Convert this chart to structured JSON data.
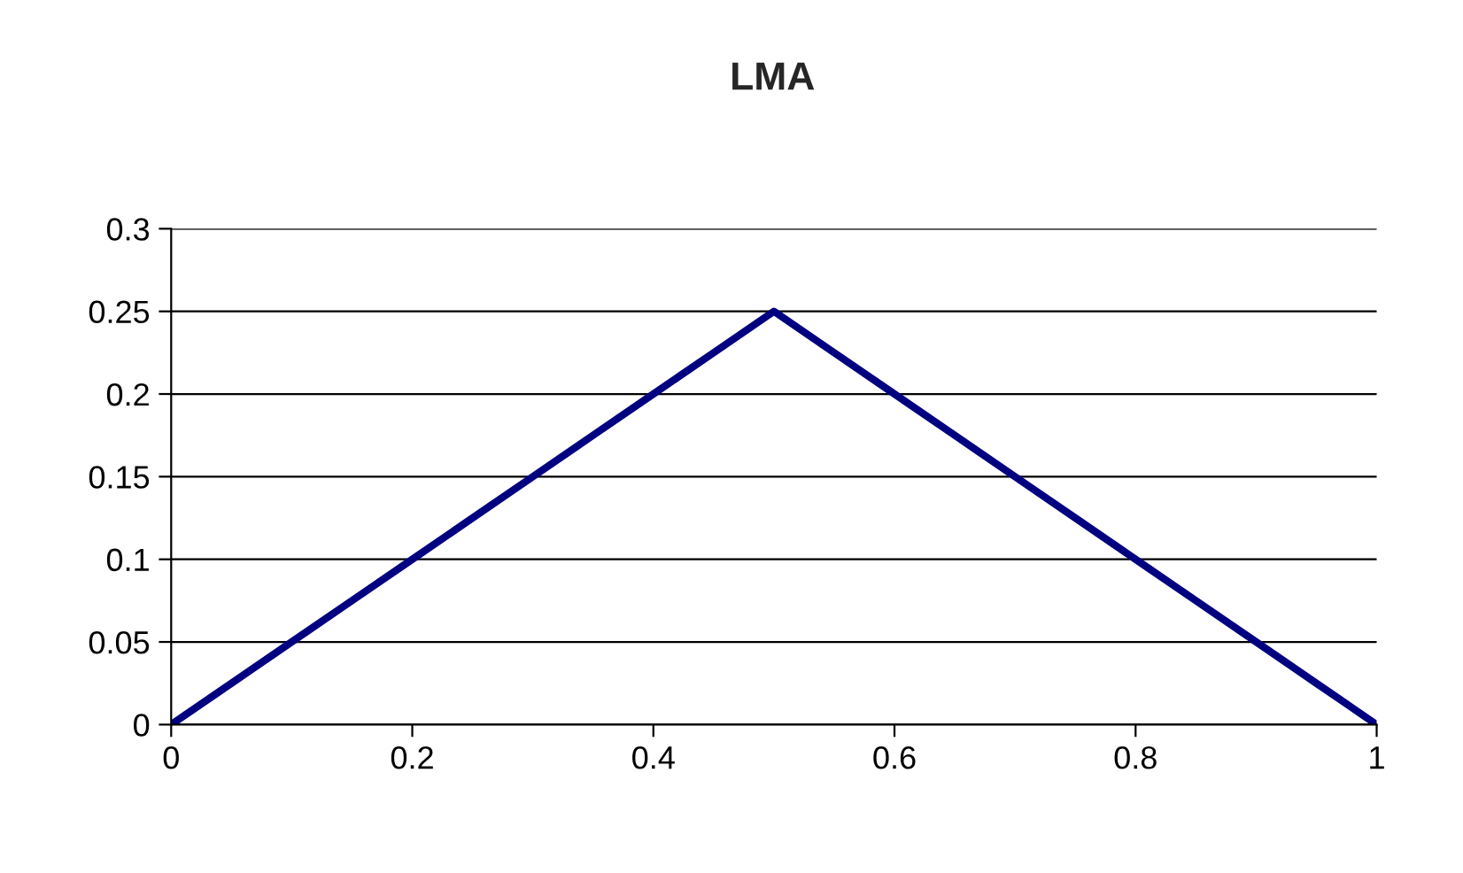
{
  "chart_data": {
    "type": "line",
    "title": "LMA",
    "x": [
      0,
      0.05,
      0.1,
      0.15,
      0.2,
      0.25,
      0.3,
      0.35,
      0.4,
      0.45,
      0.5,
      0.55,
      0.6,
      0.65,
      0.7,
      0.75,
      0.8,
      0.85,
      0.9,
      0.95,
      1
    ],
    "series": [
      {
        "color": "#000080",
        "values": [
          0,
          0.025,
          0.05,
          0.075,
          0.1,
          0.125,
          0.15,
          0.175,
          0.2,
          0.225,
          0.25,
          0.225,
          0.2,
          0.175,
          0.15,
          0.125,
          0.1,
          0.075,
          0.05,
          0.025,
          0
        ]
      }
    ],
    "xlim": [
      0,
      1
    ],
    "xticks": [
      0,
      0.2,
      0.4,
      0.6,
      0.8,
      1
    ],
    "ylim": [
      0,
      0.3
    ],
    "yticks": [
      0,
      0.05,
      0.1,
      0.15,
      0.2,
      0.25,
      0.3
    ],
    "grid": "y",
    "marker": "none",
    "line_style": "solid",
    "legend": false
  }
}
